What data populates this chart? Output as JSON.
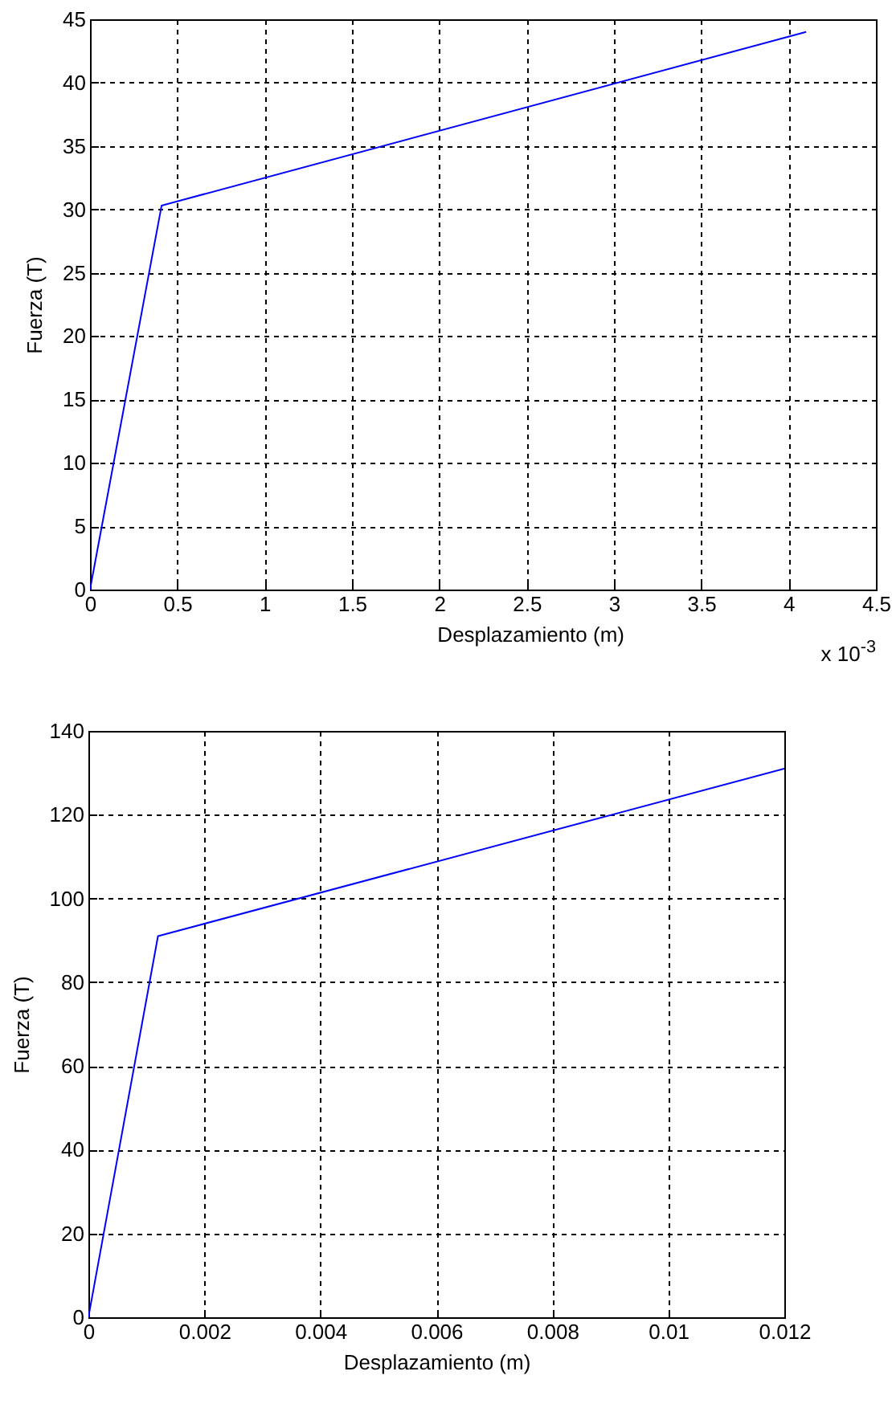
{
  "chart_data": [
    {
      "type": "line",
      "xlabel": "Desplazamiento (m)",
      "ylabel": "Fuerza (T)",
      "x": [
        0,
        0.41,
        4.1
      ],
      "series": [
        {
          "color": "#0000ff",
          "values": [
            0,
            30.3,
            44
          ]
        }
      ],
      "xlim": [
        0,
        4.5
      ],
      "ylim": [
        0,
        45
      ],
      "xticks": [
        0,
        0.5,
        1,
        1.5,
        2,
        2.5,
        3,
        3.5,
        4,
        4.5
      ],
      "yticks": [
        0,
        5,
        10,
        15,
        20,
        25,
        30,
        35,
        40,
        45
      ],
      "grid": true,
      "line_style": "solid",
      "annotations": [
        "x 10$^{-3}$"
      ]
    },
    {
      "type": "line",
      "xlabel": "Desplazamiento (m)",
      "ylabel": "Fuerza (T)",
      "x": [
        0,
        0.0012,
        0.012
      ],
      "series": [
        {
          "color": "#0000ff",
          "values": [
            0,
            91,
            131
          ]
        }
      ],
      "xlim": [
        0,
        0.012
      ],
      "ylim": [
        0,
        140
      ],
      "xticks": [
        0,
        0.002,
        0.004,
        0.006,
        0.008,
        0.01,
        0.012
      ],
      "yticks": [
        0,
        20,
        40,
        60,
        80,
        100,
        120,
        140
      ],
      "grid": true,
      "line_style": "solid"
    }
  ]
}
